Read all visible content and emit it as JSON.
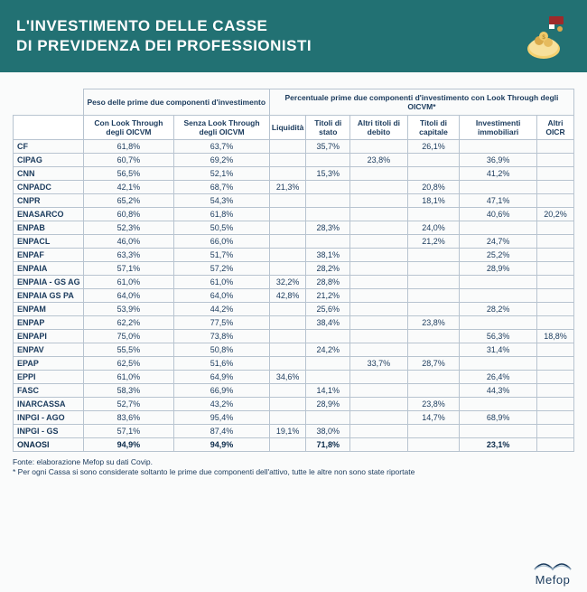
{
  "header": {
    "title_line1": "L'INVESTIMENTO DELLE CASSE",
    "title_line2": "DI PREVIDENZA DEI PROFESSIONISTI"
  },
  "table": {
    "group_headers": [
      "Peso delle prime due componenti d'investimento",
      "Percentuale prime due componenti d'investimento con Look Through degli OICVM*"
    ],
    "columns": [
      "Con Look Through degli OICVM",
      "Senza Look Through degli OICVM",
      "Liquidità",
      "Titoli di stato",
      "Altri titoli di debito",
      "Titoli di capitale",
      "Investimenti immobiliari",
      "Altri OICR"
    ],
    "rows": [
      {
        "name": "CF",
        "v": [
          "61,8%",
          "63,7%",
          "",
          "35,7%",
          "",
          "26,1%",
          "",
          ""
        ]
      },
      {
        "name": "CIPAG",
        "v": [
          "60,7%",
          "69,2%",
          "",
          "",
          "23,8%",
          "",
          "36,9%",
          ""
        ]
      },
      {
        "name": "CNN",
        "v": [
          "56,5%",
          "52,1%",
          "",
          "15,3%",
          "",
          "",
          "41,2%",
          ""
        ]
      },
      {
        "name": "CNPADC",
        "v": [
          "42,1%",
          "68,7%",
          "21,3%",
          "",
          "",
          "20,8%",
          "",
          ""
        ]
      },
      {
        "name": "CNPR",
        "v": [
          "65,2%",
          "54,3%",
          "",
          "",
          "",
          "18,1%",
          "47,1%",
          ""
        ]
      },
      {
        "name": "ENASARCO",
        "v": [
          "60,8%",
          "61,8%",
          "",
          "",
          "",
          "",
          "40,6%",
          "20,2%"
        ]
      },
      {
        "name": "ENPAB",
        "v": [
          "52,3%",
          "50,5%",
          "",
          "28,3%",
          "",
          "24,0%",
          "",
          ""
        ]
      },
      {
        "name": "ENPACL",
        "v": [
          "46,0%",
          "66,0%",
          "",
          "",
          "",
          "21,2%",
          "24,7%",
          ""
        ]
      },
      {
        "name": "ENPAF",
        "v": [
          "63,3%",
          "51,7%",
          "",
          "38,1%",
          "",
          "",
          "25,2%",
          ""
        ]
      },
      {
        "name": "ENPAIA",
        "v": [
          "57,1%",
          "57,2%",
          "",
          "28,2%",
          "",
          "",
          "28,9%",
          ""
        ]
      },
      {
        "name": "ENPAIA - GS AG",
        "v": [
          "61,0%",
          "61,0%",
          "32,2%",
          "28,8%",
          "",
          "",
          "",
          ""
        ]
      },
      {
        "name": "ENPAIA GS PA",
        "v": [
          "64,0%",
          "64,0%",
          "42,8%",
          "21,2%",
          "",
          "",
          "",
          ""
        ]
      },
      {
        "name": "ENPAM",
        "v": [
          "53,9%",
          "44,2%",
          "",
          "25,6%",
          "",
          "",
          "28,2%",
          ""
        ]
      },
      {
        "name": "ENPAP",
        "v": [
          "62,2%",
          "77,5%",
          "",
          "38,4%",
          "",
          "23,8%",
          "",
          ""
        ]
      },
      {
        "name": "ENPAPI",
        "v": [
          "75,0%",
          "73,8%",
          "",
          "",
          "",
          "",
          "56,3%",
          "18,8%"
        ]
      },
      {
        "name": "ENPAV",
        "v": [
          "55,5%",
          "50,8%",
          "",
          "24,2%",
          "",
          "",
          "31,4%",
          ""
        ]
      },
      {
        "name": "EPAP",
        "v": [
          "62,5%",
          "51,6%",
          "",
          "",
          "33,7%",
          "28,7%",
          "",
          ""
        ]
      },
      {
        "name": "EPPI",
        "v": [
          "61,0%",
          "64,9%",
          "34,6%",
          "",
          "",
          "",
          "26,4%",
          ""
        ]
      },
      {
        "name": "FASC",
        "v": [
          "58,3%",
          "66,9%",
          "",
          "14,1%",
          "",
          "",
          "44,3%",
          ""
        ]
      },
      {
        "name": "INARCASSA",
        "v": [
          "52,7%",
          "43,2%",
          "",
          "28,9%",
          "",
          "23,8%",
          "",
          ""
        ]
      },
      {
        "name": "INPGI - AGO",
        "v": [
          "83,6%",
          "95,4%",
          "",
          "",
          "",
          "14,7%",
          "68,9%",
          ""
        ]
      },
      {
        "name": "INPGI - GS",
        "v": [
          "57,1%",
          "87,4%",
          "19,1%",
          "38,0%",
          "",
          "",
          "",
          ""
        ]
      },
      {
        "name": "ONAOSI",
        "v": [
          "94,9%",
          "94,9%",
          "",
          "71,8%",
          "",
          "",
          "23,1%",
          ""
        ],
        "bold": true
      }
    ]
  },
  "footnote": {
    "line1": "Fonte: elaborazione Mefop su dati Covip.",
    "line2": "* Per ogni Cassa si sono considerate soltanto le prime due componenti dell'attivo, tutte le altre non sono state riportate"
  },
  "footer": {
    "brand": "Mefop"
  },
  "colors": {
    "header_bg": "#227173",
    "text": "#1a3a5c",
    "border": "#b8c4d0"
  }
}
